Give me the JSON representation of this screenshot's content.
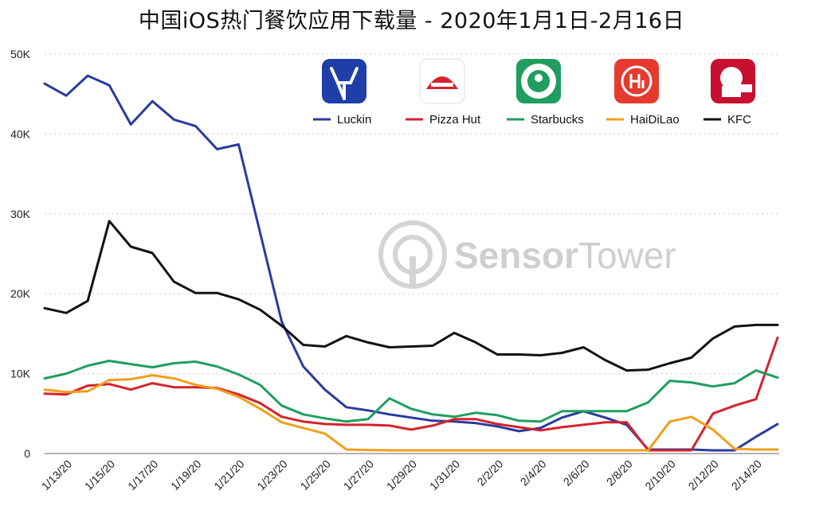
{
  "chart_data": {
    "type": "line",
    "title": "中国iOS热门餐饮应用下载量 - 2020年1月1日-2月16日",
    "watermark": {
      "word1": "Sensor",
      "word2": "Tower",
      "icon": "sensortower-logo-icon"
    },
    "ylim": [
      0,
      50000
    ],
    "y_ticks": [
      {
        "value": 0,
        "label": "0"
      },
      {
        "value": 10000,
        "label": "10K"
      },
      {
        "value": 20000,
        "label": "20K"
      },
      {
        "value": 30000,
        "label": "30K"
      },
      {
        "value": 40000,
        "label": "40K"
      },
      {
        "value": 50000,
        "label": "50K"
      }
    ],
    "grid": true,
    "legend_position": "top-right",
    "x": [
      "1/12/20",
      "1/13/20",
      "1/14/20",
      "1/15/20",
      "1/16/20",
      "1/17/20",
      "1/18/20",
      "1/19/20",
      "1/20/20",
      "1/21/20",
      "1/22/20",
      "1/23/20",
      "1/24/20",
      "1/25/20",
      "1/26/20",
      "1/27/20",
      "1/28/20",
      "1/29/20",
      "1/30/20",
      "1/31/20",
      "2/1/20",
      "2/2/20",
      "2/3/20",
      "2/4/20",
      "2/5/20",
      "2/6/20",
      "2/7/20",
      "2/8/20",
      "2/9/20",
      "2/10/20",
      "2/11/20",
      "2/12/20",
      "2/13/20",
      "2/14/20",
      "2/15/20"
    ],
    "x_tick_labels": [
      "1/13/20",
      "1/15/20",
      "1/17/20",
      "1/19/20",
      "1/21/20",
      "1/23/20",
      "1/25/20",
      "1/27/20",
      "1/29/20",
      "1/31/20",
      "2/2/20",
      "2/4/20",
      "2/6/20",
      "2/8/20",
      "2/10/20",
      "2/12/20",
      "2/14/20"
    ],
    "series": [
      {
        "name": "Luckin",
        "color": "#2a3b9e",
        "icon": "luckin-deer-icon",
        "values": [
          46300,
          44800,
          47300,
          46100,
          41200,
          44100,
          41800,
          41000,
          38100,
          38700,
          27600,
          16500,
          10900,
          8000,
          5800,
          5400,
          4900,
          4500,
          4100,
          4000,
          3800,
          3400,
          2800,
          3200,
          4500,
          5300,
          4500,
          3600,
          500,
          500,
          500,
          400,
          400,
          2100,
          3700
        ]
      },
      {
        "name": "Pizza Hut",
        "color": "#d3242e",
        "icon": "pizzahut-hat-icon",
        "values": [
          7500,
          7400,
          8500,
          8700,
          8000,
          8800,
          8300,
          8300,
          8200,
          7400,
          6300,
          4600,
          4000,
          3700,
          3600,
          3600,
          3500,
          3000,
          3500,
          4300,
          4300,
          3700,
          3300,
          2900,
          3300,
          3600,
          3900,
          3900,
          400,
          400,
          400,
          5000,
          6000,
          6800,
          14500
        ]
      },
      {
        "name": "Starbucks",
        "color": "#1f9e5e",
        "icon": "starbucks-siren-icon",
        "values": [
          9400,
          10000,
          11000,
          11600,
          11200,
          10800,
          11300,
          11500,
          10900,
          9900,
          8600,
          6000,
          4900,
          4400,
          4000,
          4300,
          6900,
          5600,
          4900,
          4600,
          5100,
          4800,
          4100,
          4000,
          5300,
          5300,
          5300,
          5300,
          6400,
          9100,
          8900,
          8400,
          8800,
          10400,
          9500
        ]
      },
      {
        "name": "HaiDiLao",
        "color": "#f29f1c",
        "icon": "haidilao-hi-icon",
        "values": [
          8000,
          7700,
          7800,
          9200,
          9300,
          9800,
          9400,
          8600,
          8100,
          7100,
          5600,
          3900,
          3200,
          2500,
          500,
          450,
          400,
          400,
          400,
          400,
          400,
          400,
          400,
          400,
          400,
          400,
          400,
          400,
          400,
          4000,
          4600,
          3000,
          600,
          500,
          500
        ]
      },
      {
        "name": "KFC",
        "color": "#111111",
        "icon": "kfc-colonel-icon",
        "values": [
          18200,
          17600,
          19100,
          29100,
          25900,
          25100,
          21500,
          20100,
          20100,
          19300,
          18000,
          16000,
          13600,
          13400,
          14700,
          13900,
          13300,
          13400,
          13500,
          15100,
          13900,
          12400,
          12400,
          12300,
          12600,
          13300,
          11700,
          10400,
          10500,
          11300,
          12000,
          14400,
          15900,
          16100,
          16100
        ]
      }
    ]
  }
}
